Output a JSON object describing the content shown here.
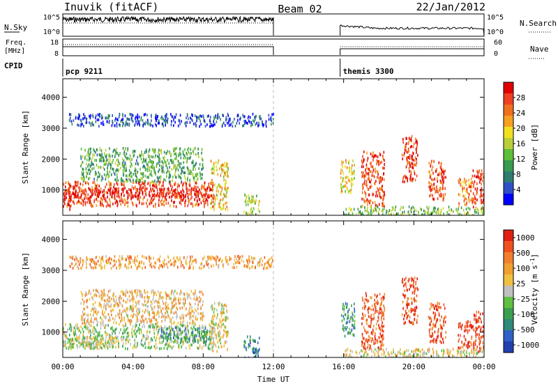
{
  "header": {
    "station": "Inuvik (fitACF)",
    "beam": "Beam 02",
    "date": "22/Jan/2012"
  },
  "summary": {
    "nsky_label": "N.Sky",
    "nsky_ticks": [
      "10^5",
      "10^0"
    ],
    "nsearch_label": "N.Search",
    "nsearch_ticks": [
      "10^5",
      "10^0"
    ],
    "freq_label_1": "Freq.",
    "freq_label_2": "[MHz]",
    "freq_ticks": [
      "18",
      "8"
    ],
    "nave_label": "Nave",
    "nave_ticks": [
      "60",
      "0"
    ],
    "cpid_label": "CPID",
    "cpid_entries": [
      {
        "name": "pcp 9211",
        "start_hour": 0,
        "end_hour": 12.0
      },
      {
        "name": "themis 3300",
        "start_hour": 15.8,
        "end_hour": 24.0
      }
    ]
  },
  "chart_data": [
    {
      "type": "heatmap",
      "name": "power",
      "ylabel": "Slant Range [km]",
      "xlabel": "",
      "x_ticks": [
        "00:00",
        "04:00",
        "08:00",
        "12:00",
        "16:00",
        "20:00",
        "00:00"
      ],
      "x_range_hours": [
        0,
        24
      ],
      "y_ticks": [
        "1000",
        "2000",
        "3000",
        "4000"
      ],
      "y_tick_values": [
        1000,
        2000,
        3000,
        4000
      ],
      "ylim": [
        180,
        4600
      ],
      "colorbar": {
        "label": "Power [dB]",
        "ticks": [
          "4",
          "8",
          "12",
          "16",
          "20",
          "24",
          "28"
        ],
        "range": [
          0,
          32
        ],
        "colors": [
          "#0000ff",
          "#3050c8",
          "#2e7d6e",
          "#3a9a50",
          "#5cbf3a",
          "#b8cf3a",
          "#f0e020",
          "#f5a020",
          "#f07020",
          "#f04020",
          "#e00000"
        ]
      },
      "regions": [
        {
          "t0": 0.0,
          "t1": 8.6,
          "r0": 500,
          "r1": 1300,
          "level": 0.85
        },
        {
          "t0": 0.2,
          "t1": 8.5,
          "r0": 800,
          "r1": 1100,
          "level": 0.95
        },
        {
          "t0": 0.0,
          "t1": 0.4,
          "r0": 400,
          "r1": 1000,
          "level": 0.98
        },
        {
          "t0": 1.0,
          "t1": 8.0,
          "r0": 1300,
          "r1": 2400,
          "level": 0.35
        },
        {
          "t0": 0.3,
          "t1": 12.0,
          "r0": 3100,
          "r1": 3500,
          "level": 0.12
        },
        {
          "t0": 8.4,
          "t1": 9.4,
          "r0": 400,
          "r1": 2000,
          "level": 0.6
        },
        {
          "t0": 10.3,
          "t1": 11.2,
          "r0": 200,
          "r1": 900,
          "level": 0.5
        },
        {
          "t0": 15.8,
          "t1": 16.6,
          "r0": 900,
          "r1": 2000,
          "level": 0.6
        },
        {
          "t0": 17.0,
          "t1": 18.3,
          "r0": 500,
          "r1": 2300,
          "level": 0.85
        },
        {
          "t0": 19.3,
          "t1": 20.2,
          "r0": 1300,
          "r1": 2800,
          "level": 0.9
        },
        {
          "t0": 20.8,
          "t1": 21.8,
          "r0": 700,
          "r1": 2000,
          "level": 0.85
        },
        {
          "t0": 22.5,
          "t1": 23.3,
          "r0": 500,
          "r1": 1400,
          "level": 0.75
        },
        {
          "t0": 23.3,
          "t1": 24.0,
          "r0": 400,
          "r1": 1700,
          "level": 0.9
        },
        {
          "t0": 16.0,
          "t1": 24.0,
          "r0": 200,
          "r1": 500,
          "level": 0.4
        }
      ]
    },
    {
      "type": "heatmap",
      "name": "velocity",
      "ylabel": "Slant Range [km]",
      "xlabel": "Time UT",
      "x_ticks": [
        "00:00",
        "04:00",
        "08:00",
        "12:00",
        "16:00",
        "20:00",
        "00:00"
      ],
      "x_range_hours": [
        0,
        24
      ],
      "y_ticks": [
        "1000",
        "2000",
        "3000",
        "4000"
      ],
      "y_tick_values": [
        1000,
        2000,
        3000,
        4000
      ],
      "ylim": [
        180,
        4600
      ],
      "colorbar": {
        "label": "Velocity [m s^-1]",
        "ticks": [
          "1000",
          "500",
          "100",
          "25",
          "-25",
          "-100",
          "-500",
          "-1000"
        ],
        "range": [
          -1200,
          1200
        ],
        "colors": [
          "#2040b0",
          "#3060c8",
          "#2e8a7a",
          "#3aa050",
          "#60c040",
          "#c0c0c0",
          "#f0c040",
          "#f0a030",
          "#f08030",
          "#f05020",
          "#e02010"
        ]
      },
      "regions": [
        {
          "t0": 0.0,
          "t1": 8.6,
          "r0": 500,
          "r1": 1300,
          "level": 0.45
        },
        {
          "t0": 0.0,
          "t1": 3.0,
          "r0": 500,
          "r1": 900,
          "level": 0.52
        },
        {
          "t0": 5.5,
          "t1": 8.5,
          "r0": 700,
          "r1": 1200,
          "level": 0.3
        },
        {
          "t0": 1.0,
          "t1": 8.0,
          "r0": 1300,
          "r1": 2400,
          "level": 0.62
        },
        {
          "t0": 0.3,
          "t1": 12.0,
          "r0": 3100,
          "r1": 3500,
          "level": 0.7
        },
        {
          "t0": 8.4,
          "t1": 9.4,
          "r0": 400,
          "r1": 2000,
          "level": 0.55
        },
        {
          "t0": 10.3,
          "t1": 11.2,
          "r0": 200,
          "r1": 900,
          "level": 0.2
        },
        {
          "t0": 15.8,
          "t1": 16.6,
          "r0": 900,
          "r1": 2000,
          "level": 0.3
        },
        {
          "t0": 17.0,
          "t1": 18.3,
          "r0": 500,
          "r1": 2300,
          "level": 0.85
        },
        {
          "t0": 19.3,
          "t1": 20.2,
          "r0": 1300,
          "r1": 2800,
          "level": 0.88
        },
        {
          "t0": 20.8,
          "t1": 21.8,
          "r0": 700,
          "r1": 2000,
          "level": 0.88
        },
        {
          "t0": 22.5,
          "t1": 23.3,
          "r0": 500,
          "r1": 1400,
          "level": 0.88
        },
        {
          "t0": 23.3,
          "t1": 24.0,
          "r0": 400,
          "r1": 1700,
          "level": 0.9
        },
        {
          "t0": 16.0,
          "t1": 24.0,
          "r0": 200,
          "r1": 500,
          "level": 0.55
        }
      ]
    }
  ]
}
